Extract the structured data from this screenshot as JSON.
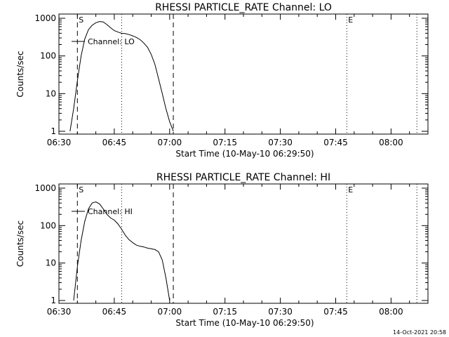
{
  "footer": {
    "timestamp": "14-Oct-2021 20:58"
  },
  "chart_data": [
    {
      "type": "line",
      "title": "RHESSI PARTICLE_RATE Channel: LO",
      "xlabel": "Start Time (10-May-10 06:29:50)",
      "ylabel": "Counts/sec",
      "y_scale": "log",
      "xlim": [
        "06:30",
        "08:10"
      ],
      "ylim": [
        1,
        1000
      ],
      "x_ticks": [
        "06:30",
        "06:45",
        "07:00",
        "07:15",
        "07:30",
        "07:45",
        "08:00"
      ],
      "y_ticks": [
        "1",
        "10",
        "100",
        "1000"
      ],
      "grid": false,
      "legend": "upper-left",
      "series": [
        {
          "name": "Channel: LO",
          "x": [
            "06:33",
            "06:34",
            "06:35",
            "06:36",
            "06:37",
            "06:38",
            "06:39",
            "06:40",
            "06:41",
            "06:42",
            "06:43",
            "06:44",
            "06:45",
            "06:46",
            "06:47",
            "06:48",
            "06:49",
            "06:50",
            "06:51",
            "06:52",
            "06:53",
            "06:54",
            "06:55",
            "06:56",
            "06:57",
            "06:58",
            "06:59",
            "07:00",
            "07:01"
          ],
          "y": [
            1,
            4,
            22,
            100,
            280,
            500,
            650,
            760,
            820,
            800,
            680,
            560,
            470,
            430,
            400,
            390,
            370,
            340,
            310,
            270,
            220,
            170,
            110,
            60,
            25,
            10,
            4,
            1.8,
            1
          ]
        }
      ],
      "vertical_markers": [
        {
          "label": "S",
          "time": "06:35",
          "style": "dashed"
        },
        {
          "label": "",
          "time": "06:47",
          "style": "dotted"
        },
        {
          "label": "",
          "time": "07:01",
          "style": "dashed"
        },
        {
          "label": "E",
          "time": "07:48",
          "style": "dotted"
        },
        {
          "label": "",
          "time": "08:07",
          "style": "dotted"
        }
      ]
    },
    {
      "type": "line",
      "title": "RHESSI PARTICLE_RATE Channel: HI",
      "xlabel": "Start Time (10-May-10 06:29:50)",
      "ylabel": "Counts/sec",
      "y_scale": "log",
      "xlim": [
        "06:30",
        "08:10"
      ],
      "ylim": [
        1,
        1000
      ],
      "x_ticks": [
        "06:30",
        "06:45",
        "07:00",
        "07:15",
        "07:30",
        "07:45",
        "08:00"
      ],
      "y_ticks": [
        "1",
        "10",
        "100",
        "1000"
      ],
      "grid": false,
      "legend": "upper-left",
      "series": [
        {
          "name": "Channel: HI",
          "x": [
            "06:34",
            "06:35",
            "06:36",
            "06:37",
            "06:38",
            "06:39",
            "06:40",
            "06:41",
            "06:42",
            "06:43",
            "06:44",
            "06:45",
            "06:46",
            "06:47",
            "06:48",
            "06:49",
            "06:50",
            "06:51",
            "06:52",
            "06:53",
            "06:54",
            "06:55",
            "06:56",
            "06:57",
            "06:58",
            "06:59",
            "07:00"
          ],
          "y": [
            1,
            8,
            40,
            130,
            280,
            400,
            430,
            380,
            280,
            200,
            160,
            140,
            110,
            80,
            55,
            42,
            35,
            30,
            28,
            27,
            25,
            24,
            23,
            20,
            12,
            4,
            1
          ]
        }
      ],
      "vertical_markers": [
        {
          "label": "S",
          "time": "06:35",
          "style": "dashed"
        },
        {
          "label": "",
          "time": "06:47",
          "style": "dotted"
        },
        {
          "label": "",
          "time": "07:01",
          "style": "dashed"
        },
        {
          "label": "E",
          "time": "07:48",
          "style": "dotted"
        },
        {
          "label": "",
          "time": "08:07",
          "style": "dotted"
        }
      ]
    }
  ]
}
